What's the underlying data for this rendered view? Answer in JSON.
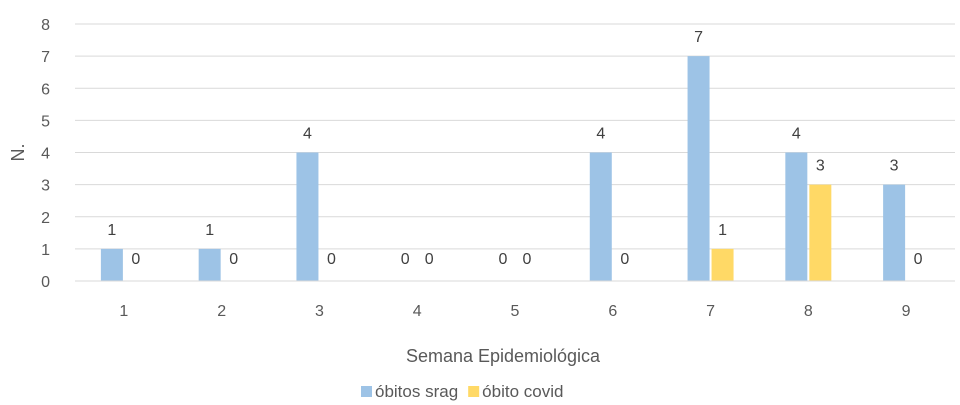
{
  "chart_data": {
    "type": "bar",
    "categories": [
      "1",
      "2",
      "3",
      "4",
      "5",
      "6",
      "7",
      "8",
      "9"
    ],
    "series": [
      {
        "name": "óbitos srag",
        "values": [
          1,
          1,
          4,
          0,
          0,
          4,
          7,
          4,
          3
        ],
        "color": "#9DC3E6"
      },
      {
        "name": "óbito covid",
        "values": [
          0,
          0,
          0,
          0,
          0,
          0,
          1,
          3,
          0
        ],
        "color": "#FFD966"
      }
    ],
    "xlabel": "Semana Epidemiológica",
    "ylabel": "N.",
    "ylim": [
      0,
      8
    ],
    "yticks": [
      "0",
      "1",
      "2",
      "3",
      "4",
      "5",
      "6",
      "7",
      "8"
    ],
    "grid": true,
    "legend": "bottom-center",
    "data_labels": true
  }
}
